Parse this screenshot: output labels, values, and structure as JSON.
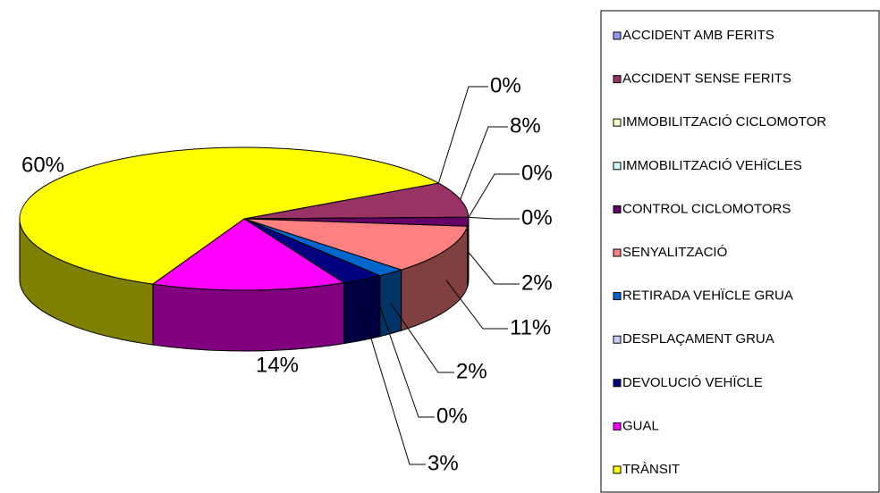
{
  "chart_data": {
    "type": "pie",
    "categories": [
      "ACCIDENT AMB FERITS",
      "ACCIDENT SENSE FERITS",
      "IMMOBILITZACIÓ CICLOMOTOR",
      "IMMOBILITZACIÓ VEHÏCLES",
      "CONTROL CICLOMOTORS",
      "SENYALITZACIÓ",
      "RETIRADA VEHÏCLE GRUA",
      "DESPLAÇAMENT GRUA",
      "DEVOLUCIÓ VEHÏCLE",
      "GUAL",
      "TRÀNSIT"
    ],
    "values": [
      0,
      8,
      0,
      0,
      2,
      11,
      2,
      0,
      3,
      14,
      60
    ],
    "value_labels": [
      "0%",
      "8%",
      "0%",
      "0%",
      "2%",
      "11%",
      "2%",
      "0%",
      "3%",
      "14%",
      "60%"
    ],
    "colors": [
      "#9999FF",
      "#993366",
      "#FFFFCC",
      "#CCFFFF",
      "#660066",
      "#FF8080",
      "#0066CC",
      "#CCCCFF",
      "#000080",
      "#FF00FF",
      "#FFFF00"
    ],
    "legend": "right"
  }
}
